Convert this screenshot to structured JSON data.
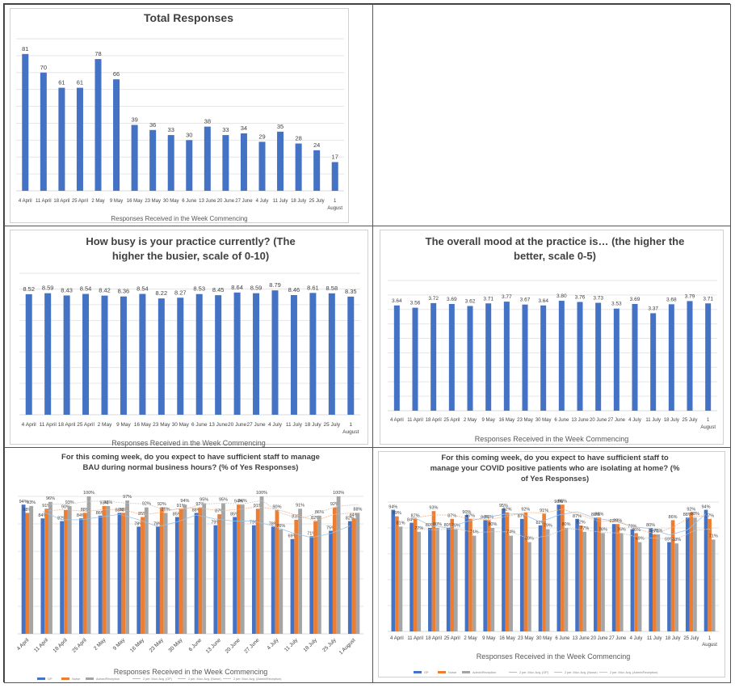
{
  "colors": {
    "gp": "#4472C4",
    "nurse": "#ED7D31",
    "admin": "#A5A5A5",
    "grid": "#E7E6E6",
    "text": "#404040"
  },
  "chart_data": [
    {
      "id": "total",
      "type": "bar",
      "title": "Total Responses",
      "xlabel": "Responses Received in the Week Commencing",
      "categories": [
        "4 April",
        "11 April",
        "18 April",
        "25 April",
        "2 May",
        "9 May",
        "16 May",
        "23 May",
        "30 May",
        "6 June",
        "13 June",
        "20 June",
        "27 June",
        "4 July",
        "11 July",
        "18 July",
        "25 July",
        "1 August"
      ],
      "values": [
        81,
        70,
        61,
        61,
        78,
        66,
        39,
        36,
        33,
        30,
        38,
        33,
        34,
        29,
        35,
        28,
        24,
        17
      ],
      "value_labels": [
        "81",
        "70",
        "61",
        "61",
        "78",
        "66",
        "39",
        "36",
        "33",
        "30",
        "38",
        "33",
        "34",
        "29",
        "35",
        "28",
        "24",
        "17"
      ],
      "ylim": [
        0,
        90
      ],
      "grid": true
    },
    {
      "id": "busy",
      "type": "bar",
      "title": "How busy is your practice currently?  (The higher the busier, scale of 0-10)",
      "xlabel": "Responses Received in the Week Commencing",
      "categories": [
        "4 April",
        "11 April",
        "18 April",
        "25 April",
        "2 May",
        "9 May",
        "16 May",
        "23 May",
        "30 May",
        "6 June",
        "13 June",
        "20 June",
        "27 June",
        "4 July",
        "11 July",
        "18 July",
        "25 July",
        "1 August"
      ],
      "values": [
        8.52,
        8.59,
        8.43,
        8.54,
        8.42,
        8.36,
        8.54,
        8.22,
        8.27,
        8.53,
        8.45,
        8.64,
        8.59,
        8.79,
        8.46,
        8.61,
        8.58,
        8.35
      ],
      "value_labels": [
        "8.52",
        "8.59",
        "8.43",
        "8.54",
        "8.42",
        "8.36",
        "8.54",
        "8.22",
        "8.27",
        "8.53",
        "8.45",
        "8.64",
        "8.59",
        "8.79",
        "8.46",
        "8.61",
        "8.58",
        "8.35"
      ],
      "ylim": [
        0,
        10
      ],
      "grid": true
    },
    {
      "id": "mood",
      "type": "bar",
      "title": "The overall mood at the practice is… (the higher the better, scale 0-5)",
      "xlabel": "Responses Received in the Week Commencing",
      "categories": [
        "4 April",
        "11 April",
        "18 April",
        "25 April",
        "2 May",
        "9 May",
        "16 May",
        "23 May",
        "30 May",
        "6 June",
        "13 June",
        "20 June",
        "27 June",
        "4 July",
        "11 July",
        "18 July",
        "25 July",
        "1 August"
      ],
      "values": [
        3.64,
        3.56,
        3.72,
        3.69,
        3.62,
        3.71,
        3.77,
        3.67,
        3.64,
        3.8,
        3.76,
        3.73,
        3.53,
        3.69,
        3.37,
        3.68,
        3.79,
        3.71
      ],
      "value_labels": [
        "3.64",
        "3.56",
        "3.72",
        "3.69",
        "3.62",
        "3.71",
        "3.77",
        "3.67",
        "3.64",
        "3.80",
        "3.76",
        "3.73",
        "3.53",
        "3.69",
        "3.37",
        "3.68",
        "3.79",
        "3.71"
      ],
      "ylim": [
        0,
        4.5
      ],
      "grid": true
    },
    {
      "id": "bau",
      "type": "bar",
      "title": "For this coming week, do you expect to have sufficient staff to manage BAU during normal business hours? (% of Yes Responses)",
      "xlabel": "Responses Received in the Week Commencing",
      "categories": [
        "4 April",
        "11 April",
        "18 April",
        "25 April",
        "2 May",
        "9 May",
        "16 May",
        "23 May",
        "30 May",
        "6 June",
        "13 June",
        "20 June",
        "27 June",
        "4 July",
        "11 July",
        "18 July",
        "25 July",
        "1 August"
      ],
      "series": [
        {
          "name": "GP",
          "values": [
            94,
            84,
            82,
            84,
            86,
            88,
            78,
            78,
            85,
            88,
            79,
            85,
            79,
            78,
            69,
            71,
            75,
            82
          ]
        },
        {
          "name": "Nurse",
          "values": [
            88,
            91,
            90,
            88,
            93,
            88,
            85,
            92,
            91,
            92,
            87,
            94,
            91,
            90,
            83,
            82,
            92,
            84
          ]
        },
        {
          "name": "Admin/Reception",
          "values": [
            93,
            96,
            93,
            100,
            93,
            97,
            92,
            88,
            94,
            95,
            95,
            94,
            100,
            76,
            91,
            86,
            100,
            88
          ]
        }
      ],
      "ylim": [
        0,
        100
      ],
      "legend": [
        "GP",
        "Nurse",
        "Admin/Reception",
        "2 per. Mov. Avg. (GP)",
        "2 per. Mov. Avg. (Nurse)",
        "2 per. Mov. Avg. (Admin/Reception)"
      ],
      "legend_position": "bottom"
    },
    {
      "id": "covid",
      "type": "bar",
      "title": "For this coming week, do you expect to have sufficient staff to manage your COVID positive patients who are isolating at home? (% of Yes Responses)",
      "xlabel": "Responses Received in the Week Commencing",
      "categories": [
        "4 April",
        "11 April",
        "18 April",
        "25 April",
        "2 May",
        "9 May",
        "16 May",
        "23 May",
        "30 May",
        "6 June",
        "13 June",
        "20 June",
        "27 June",
        "4 July",
        "11 July",
        "18 July",
        "25 July",
        "1 August"
      ],
      "series": [
        {
          "name": "GP",
          "values": [
            94,
            84,
            80,
            80,
            90,
            86,
            95,
            87,
            82,
            98,
            87,
            88,
            83,
            79,
            80,
            69,
            88,
            94
          ]
        },
        {
          "name": "Nurse",
          "values": [
            89,
            87,
            93,
            87,
            87,
            86,
            92,
            92,
            91,
            98,
            82,
            88,
            83,
            76,
            75,
            86,
            92,
            87
          ]
        },
        {
          "name": "Admin/Reception",
          "values": [
            81,
            77,
            80,
            79,
            74,
            80,
            74,
            69,
            79,
            80,
            77,
            76,
            76,
            69,
            75,
            68,
            88,
            71
          ]
        }
      ],
      "ylim": [
        0,
        100
      ],
      "legend": [
        "GP",
        "Nurse",
        "Admin/Reception",
        "2 per. Mov. Avg. (GP)",
        "2 per. Mov. Avg. (Nurse)",
        "2 per. Mov. Avg. (Admin/Reception)"
      ],
      "legend_position": "bottom"
    }
  ]
}
